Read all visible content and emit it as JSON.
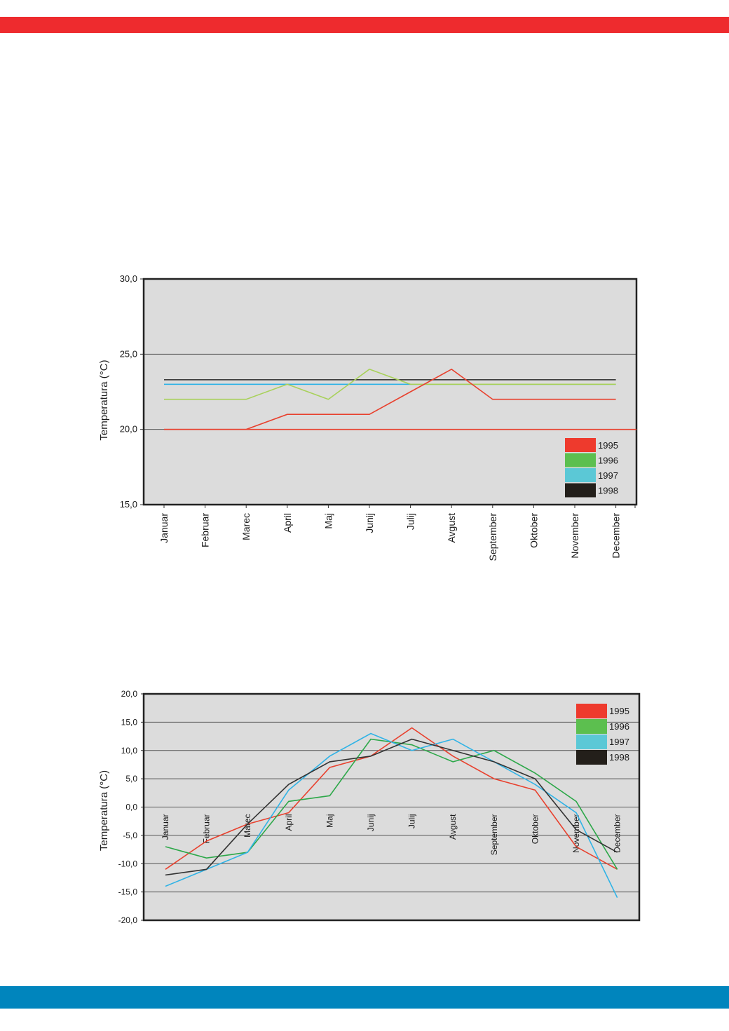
{
  "page": {
    "top_band_color": "#ee2b2e",
    "bottom_band_color": "#0085bd"
  },
  "chart_data": [
    {
      "type": "line",
      "ylabel": "Temperatura (°C)",
      "ylim": [
        15,
        30
      ],
      "yticks": [
        "15,0",
        "20,0",
        "25,0",
        "30,0"
      ],
      "grid": true,
      "legend_position": "bottom-right",
      "categories": [
        "Januar",
        "Februar",
        "Marec",
        "April",
        "Maj",
        "Junij",
        "Julij",
        "Avgust",
        "September",
        "Oktober",
        "November",
        "December"
      ],
      "series": [
        {
          "name": "1995",
          "legend_color": "#ee3a2d",
          "line_color": "#e8412e",
          "values": [
            20.0,
            20.0,
            20.0,
            21.0,
            21.0,
            21.0,
            22.5,
            24.0,
            22.0,
            22.0,
            22.0,
            22.0
          ]
        },
        {
          "name": "1996",
          "legend_color": "#5cbf4f",
          "line_color": "#a8d15a",
          "values": [
            22.0,
            22.0,
            22.0,
            23.0,
            22.0,
            24.0,
            23.0,
            23.0,
            23.0,
            23.0,
            23.0,
            23.0
          ]
        },
        {
          "name": "1997",
          "legend_color": "#5bc8d6",
          "line_color": "#30b3e6",
          "values": [
            23.0,
            23.0,
            23.0,
            23.0,
            23.0,
            23.0,
            23.0,
            23.0,
            23.0,
            23.0,
            23.0,
            23.0
          ]
        },
        {
          "name": "1998",
          "legend_color": "#231f1a",
          "line_color": "#3a3a3a",
          "values": [
            23.3,
            23.3,
            23.3,
            23.3,
            23.3,
            23.3,
            23.3,
            23.3,
            23.3,
            23.3,
            23.3,
            23.3
          ]
        }
      ],
      "reference_line": {
        "value": 20.0,
        "color": "#e8412e"
      }
    },
    {
      "type": "line",
      "ylabel": "Temperatura (°C)",
      "ylim": [
        -20,
        20
      ],
      "yticks": [
        "-20,0",
        "-15,0",
        "-10,0",
        "-5,0",
        "0,0",
        "5,0",
        "10,0",
        "15,0",
        "20,0"
      ],
      "grid": true,
      "legend_position": "top-right",
      "categories": [
        "Januar",
        "Februar",
        "Marec",
        "April",
        "Maj",
        "Junij",
        "Julij",
        "Avgust",
        "September",
        "Oktober",
        "November",
        "December"
      ],
      "series": [
        {
          "name": "1995",
          "legend_color": "#ee3a2d",
          "line_color": "#e8412e",
          "values": [
            -11,
            -6,
            -3,
            -1,
            7,
            9,
            14,
            9,
            5,
            3,
            -7,
            -11
          ]
        },
        {
          "name": "1996",
          "legend_color": "#5cbf4f",
          "line_color": "#2ea84a",
          "values": [
            -7,
            -9,
            -8,
            1,
            2,
            12,
            11,
            8,
            10,
            6,
            1,
            -11
          ]
        },
        {
          "name": "1997",
          "legend_color": "#5bc8d6",
          "line_color": "#30b3e6",
          "values": [
            -14,
            -11,
            -8,
            3,
            9,
            13,
            10,
            12,
            8,
            4,
            -1,
            -16
          ]
        },
        {
          "name": "1998",
          "legend_color": "#231f1a",
          "line_color": "#333333",
          "values": [
            -12,
            -11,
            -3,
            4,
            8,
            9,
            12,
            10,
            8,
            5,
            -4,
            -8
          ]
        }
      ]
    }
  ]
}
